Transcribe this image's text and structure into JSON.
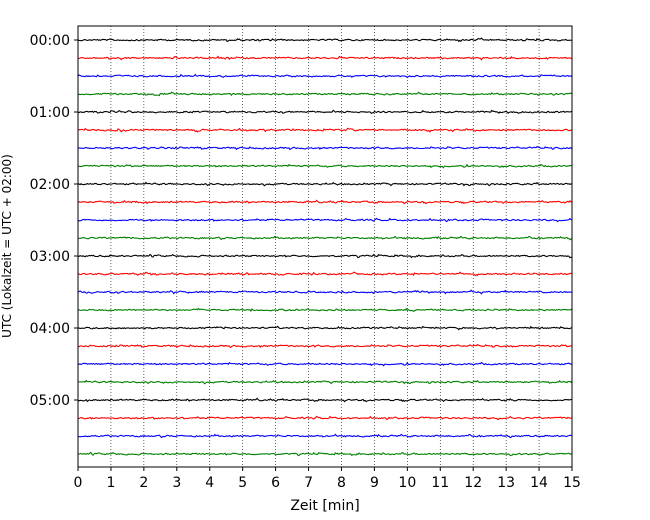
{
  "chart_data": {
    "type": "line",
    "title": "",
    "xlabel": "Zeit  [min]",
    "ylabel": "UTC (Lokalzeit = UTC + 02:00)",
    "xlim": [
      0,
      15
    ],
    "x_ticks": [
      0,
      1,
      2,
      3,
      4,
      5,
      6,
      7,
      8,
      9,
      10,
      11,
      12,
      13,
      14,
      15
    ],
    "x_tick_labels": [
      "0",
      "1",
      "2",
      "3",
      "4",
      "5",
      "6",
      "7",
      "8",
      "9",
      "10",
      "11",
      "12",
      "13",
      "14",
      "15"
    ],
    "y_tick_labels": [
      {
        "label": "00:00",
        "trace": 0
      },
      {
        "label": "01:00",
        "trace": 4
      },
      {
        "label": "02:00",
        "trace": 8
      },
      {
        "label": "03:00",
        "trace": 12
      },
      {
        "label": "04:00",
        "trace": 16
      },
      {
        "label": "05:00",
        "trace": 20
      }
    ],
    "grid": {
      "vertical": true,
      "style": "dotted"
    },
    "trace_interval_minutes": 15,
    "trace_count": 24,
    "trace_colors": [
      "#000000",
      "#ff0000",
      "#0000ff",
      "#008000"
    ]
  }
}
